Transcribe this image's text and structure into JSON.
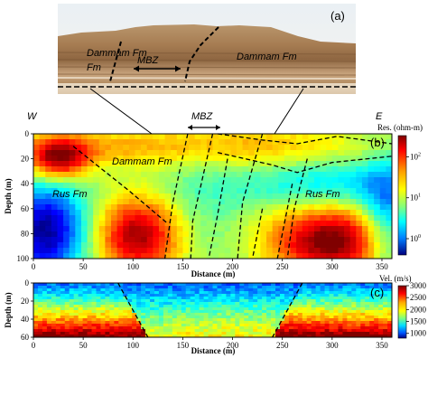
{
  "chart_data": [
    {
      "type": "image",
      "panel_label": "(a)",
      "annotations": [
        "Dammam Fm",
        "MBZ",
        "Dammam Fm"
      ]
    },
    {
      "type": "heatmap",
      "panel_label": "(b)",
      "xlabel": "Distance (m)",
      "ylabel": "Depth (m)",
      "xlim": [
        0,
        360
      ],
      "ylim": [
        100,
        0
      ],
      "x_ticks": [
        "0",
        "50",
        "100",
        "150",
        "200",
        "250",
        "300",
        "350"
      ],
      "y_ticks": [
        "0",
        "20",
        "40",
        "60",
        "80",
        "100"
      ],
      "colorbar": {
        "label": "Res. (ohm-m)",
        "scale": "log",
        "ticks": [
          "10",
          "10",
          "10"
        ],
        "tick_exponents": [
          "2",
          "1",
          "0"
        ],
        "tick_values": [
          100,
          10,
          1
        ]
      },
      "top_labels": {
        "west": "W",
        "east": "E",
        "zone": "MBZ"
      },
      "annotations": [
        "Dammam Fm",
        "Rus Fm",
        "Rus Fm"
      ]
    },
    {
      "type": "heatmap",
      "panel_label": "(c)",
      "xlabel": "Distance (m)",
      "ylabel": "Depth (m)",
      "xlim": [
        0,
        360
      ],
      "ylim": [
        60,
        0
      ],
      "x_ticks": [
        "0",
        "50",
        "100",
        "150",
        "200",
        "250",
        "300",
        "350"
      ],
      "y_ticks": [
        "0",
        "20",
        "40",
        "60"
      ],
      "colorbar": {
        "label": "Vel. (m/s)",
        "scale": "linear",
        "ticks": [
          "3000",
          "2500",
          "2000",
          "1500",
          "1000"
        ],
        "tick_values": [
          3000,
          2500,
          2000,
          1500,
          1000
        ]
      }
    }
  ]
}
